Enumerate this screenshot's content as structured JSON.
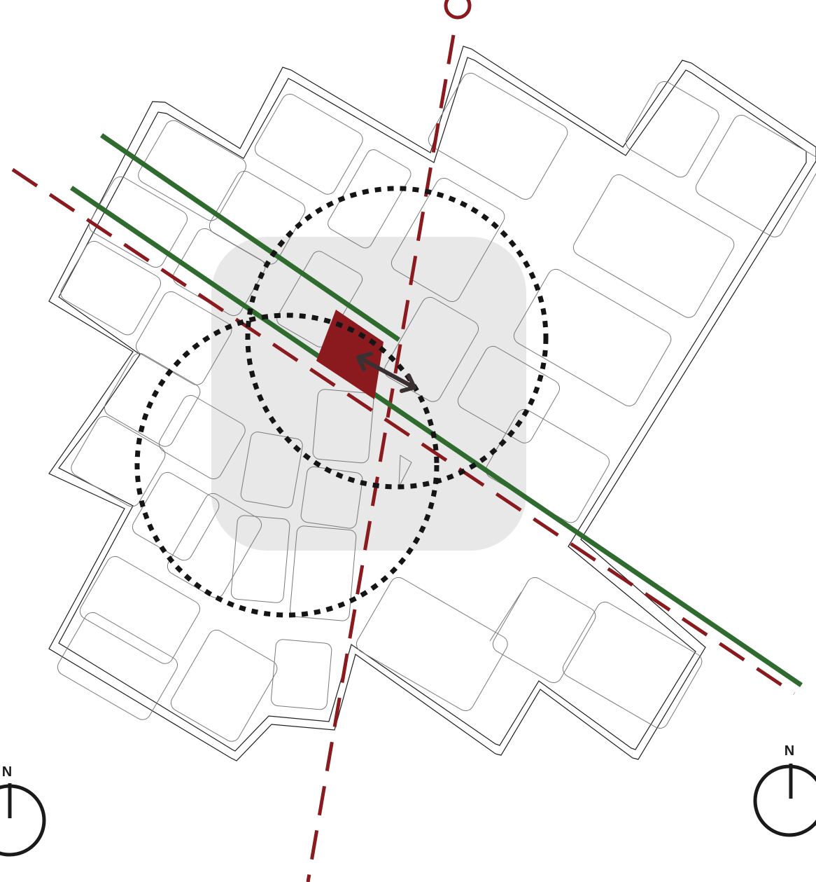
{
  "north_arrows": [
    {
      "label": "N"
    },
    {
      "label": "N"
    }
  ],
  "colors": {
    "background": "#ffffff",
    "district_outline": "#1e1e1e",
    "block_outline": "#7a7a7a",
    "focus_zone": "#e8e8e8",
    "green_axis": "#2f6b2f",
    "dashed_axis": "#8b1a1f",
    "site": "#8b1a1f",
    "walking_radius": "#151515",
    "link_arrow": "#3a3032"
  },
  "legend_elements": [
    {
      "name": "district-boundary"
    },
    {
      "name": "city-blocks"
    },
    {
      "name": "focus-zone"
    },
    {
      "name": "green-axis"
    },
    {
      "name": "dashed-axis"
    },
    {
      "name": "site-parcel"
    },
    {
      "name": "walking-radius"
    },
    {
      "name": "connection-arrow"
    }
  ]
}
